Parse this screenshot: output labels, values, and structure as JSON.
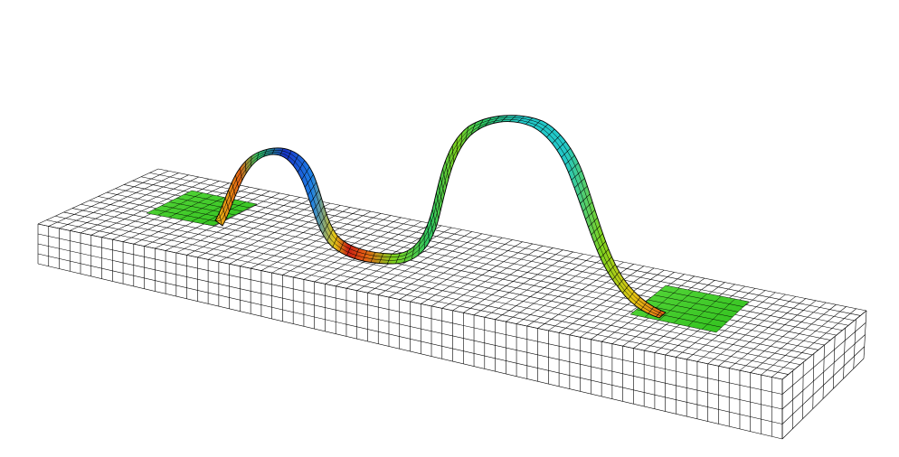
{
  "scene": {
    "background": "#ffffff",
    "mesh_line_color": "#000000",
    "substrate_face_color": "#ffffff",
    "pad_color": "#3ecc28",
    "strip_colormap": [
      "#1834c8",
      "#1e82e6",
      "#22c8c8",
      "#2ec864",
      "#7ed21e",
      "#e6c814",
      "#e66414",
      "#c81e14"
    ]
  }
}
